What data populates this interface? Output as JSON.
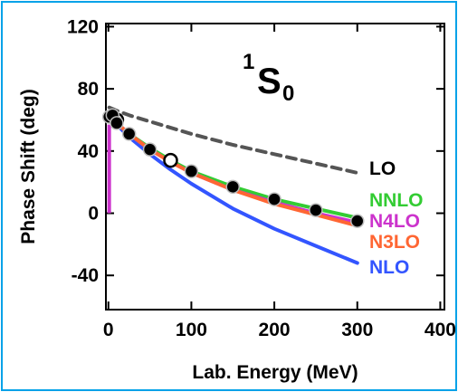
{
  "chart_data": {
    "type": "line",
    "title": {
      "sup": "1",
      "main": "S",
      "sub": "0"
    },
    "xlabel": "Lab. Energy (MeV)",
    "ylabel": "Phase Shift (deg)",
    "xlim": [
      -3,
      405
    ],
    "ylim": [
      -62,
      122
    ],
    "xticks": [
      0,
      100,
      200,
      300,
      400
    ],
    "yticks": [
      -40,
      0,
      40,
      80,
      120
    ],
    "xtick_labels": [
      "0",
      "100",
      "200",
      "300",
      "400"
    ],
    "ytick_labels": [
      "-40",
      "0",
      "40",
      "80",
      "120"
    ],
    "grid": false,
    "series": [
      {
        "name": "LO",
        "color": "#555555",
        "dash": true,
        "x": [
          1,
          10,
          25,
          50,
          75,
          100,
          150,
          200,
          250,
          300
        ],
        "y": [
          68,
          66,
          63,
          59,
          55,
          51,
          44,
          38,
          32,
          26
        ]
      },
      {
        "name": "NNLO",
        "color": "#33cc33",
        "x": [
          1,
          10,
          25,
          50,
          75,
          100,
          150,
          200,
          250,
          300
        ],
        "y": [
          62,
          58,
          51,
          42,
          34,
          27,
          17,
          9,
          3,
          -3
        ]
      },
      {
        "name": "N4LO",
        "color": "#cc33cc",
        "x": [
          1,
          10,
          25,
          50,
          75,
          100,
          150,
          200,
          250,
          300
        ],
        "y": [
          62,
          58,
          51,
          41,
          33,
          26,
          15,
          7,
          0,
          -6
        ]
      },
      {
        "name": "N3LO",
        "color": "#ff6633",
        "x": [
          1,
          10,
          25,
          50,
          75,
          100,
          150,
          200,
          250,
          300
        ],
        "y": [
          62,
          58,
          51,
          41,
          33,
          26,
          15,
          6,
          -1,
          -8
        ]
      },
      {
        "name": "NLO",
        "color": "#3355ff",
        "x": [
          1,
          10,
          25,
          50,
          75,
          100,
          150,
          200,
          250,
          300
        ],
        "y": [
          62,
          57,
          49,
          38,
          28,
          19,
          3,
          -10,
          -21,
          -32
        ]
      }
    ],
    "low_energy_segment": {
      "color": "#cc33cc",
      "x": 1,
      "y_from": 0,
      "y_to": 57
    },
    "data_points_filled": {
      "x": [
        1,
        5,
        10,
        25,
        50,
        100,
        150,
        200,
        250,
        300
      ],
      "y": [
        62,
        63,
        58,
        51,
        41,
        27,
        17,
        9,
        2,
        -5
      ]
    },
    "data_points_open": {
      "x": [
        10,
        75
      ],
      "y": [
        60,
        34
      ]
    }
  }
}
